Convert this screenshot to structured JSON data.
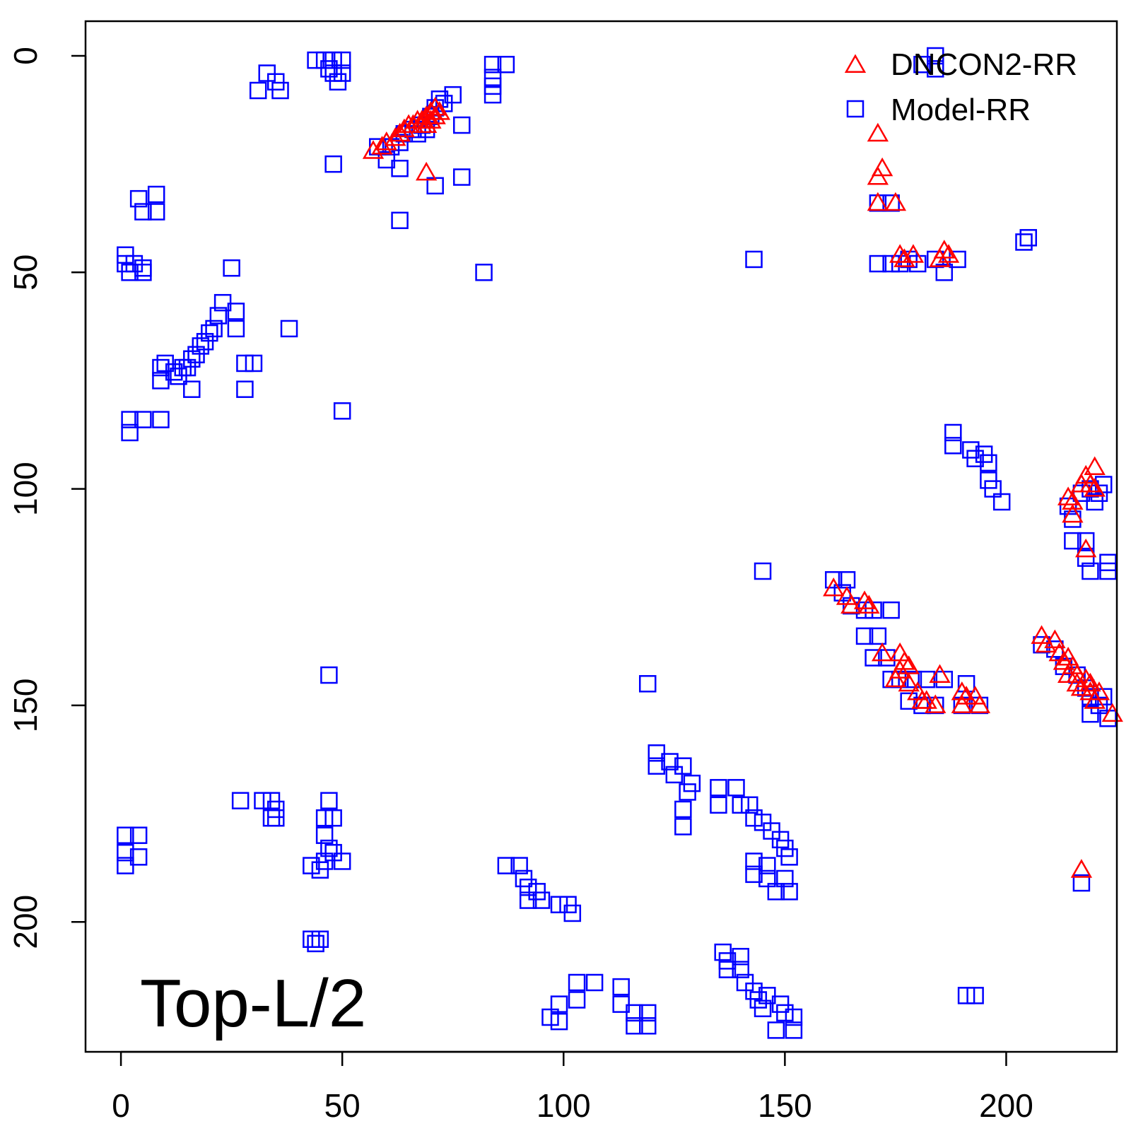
{
  "chart_data": {
    "type": "scatter",
    "title": "",
    "annotation": "Top-L/2",
    "xlim": [
      -8,
      225
    ],
    "ylim": [
      230,
      -8
    ],
    "x_ticks": [
      0,
      50,
      100,
      150,
      200
    ],
    "y_ticks": [
      0,
      50,
      100,
      150,
      200
    ],
    "x_tick_labels": [
      "0",
      "50",
      "100",
      "150",
      "200"
    ],
    "y_tick_labels": [
      "0",
      "50",
      "100",
      "150",
      "200"
    ],
    "grid": false,
    "legend_position": "top-right",
    "legend": [
      {
        "label": "DNCON2-RR",
        "marker": "triangle",
        "color": "#ff0000"
      },
      {
        "label": "Model-RR",
        "marker": "square",
        "color": "#0000ff"
      }
    ],
    "series": [
      {
        "name": "Model-RR",
        "marker": "square",
        "color": "#0000ff",
        "points": [
          [
            31,
            8
          ],
          [
            33,
            4
          ],
          [
            35,
            6
          ],
          [
            36,
            8
          ],
          [
            44,
            1
          ],
          [
            46,
            1
          ],
          [
            47,
            3
          ],
          [
            48,
            1
          ],
          [
            48,
            4
          ],
          [
            49,
            6
          ],
          [
            50,
            1
          ],
          [
            50,
            4
          ],
          [
            48,
            25
          ],
          [
            58,
            21
          ],
          [
            60,
            24
          ],
          [
            61,
            21
          ],
          [
            63,
            20
          ],
          [
            63,
            26
          ],
          [
            64,
            18
          ],
          [
            66,
            17
          ],
          [
            67,
            18
          ],
          [
            68,
            16
          ],
          [
            69,
            17
          ],
          [
            70,
            14
          ],
          [
            71,
            12
          ],
          [
            72,
            10
          ],
          [
            73,
            11
          ],
          [
            75,
            9
          ],
          [
            77,
            16
          ],
          [
            77,
            28
          ],
          [
            71,
            30
          ],
          [
            63,
            38
          ],
          [
            84,
            2
          ],
          [
            84,
            5
          ],
          [
            84,
            7
          ],
          [
            84,
            9
          ],
          [
            87,
            2
          ],
          [
            82,
            50
          ],
          [
            4,
            33
          ],
          [
            5,
            36
          ],
          [
            8,
            32
          ],
          [
            8,
            36
          ],
          [
            1,
            46
          ],
          [
            1,
            48
          ],
          [
            2,
            50
          ],
          [
            3,
            48
          ],
          [
            5,
            49
          ],
          [
            5,
            50
          ],
          [
            25,
            49
          ],
          [
            23,
            57
          ],
          [
            22,
            60
          ],
          [
            21,
            63
          ],
          [
            26,
            59
          ],
          [
            26,
            63
          ],
          [
            20,
            64
          ],
          [
            19,
            66
          ],
          [
            18,
            67
          ],
          [
            17,
            69
          ],
          [
            16,
            70
          ],
          [
            15,
            72
          ],
          [
            14,
            72
          ],
          [
            13,
            74
          ],
          [
            12,
            73
          ],
          [
            10,
            71
          ],
          [
            9,
            72
          ],
          [
            9,
            75
          ],
          [
            16,
            77
          ],
          [
            28,
            71
          ],
          [
            30,
            71
          ],
          [
            28,
            77
          ],
          [
            38,
            63
          ],
          [
            2,
            84
          ],
          [
            5,
            84
          ],
          [
            9,
            84
          ],
          [
            2,
            87
          ],
          [
            50,
            82
          ],
          [
            171,
            34
          ],
          [
            174,
            34
          ],
          [
            171,
            48
          ],
          [
            174,
            48
          ],
          [
            176,
            48
          ],
          [
            178,
            47
          ],
          [
            180,
            48
          ],
          [
            184,
            47
          ],
          [
            186,
            50
          ],
          [
            189,
            47
          ],
          [
            204,
            43
          ],
          [
            205,
            42
          ],
          [
            143,
            47
          ],
          [
            181,
            2
          ],
          [
            184,
            3
          ],
          [
            184,
            0
          ],
          [
            188,
            87
          ],
          [
            188,
            90
          ],
          [
            192,
            91
          ],
          [
            193,
            93
          ],
          [
            195,
            92
          ],
          [
            196,
            94
          ],
          [
            196,
            98
          ],
          [
            197,
            100
          ],
          [
            199,
            103
          ],
          [
            214,
            104
          ],
          [
            215,
            107
          ],
          [
            217,
            101
          ],
          [
            219,
            100
          ],
          [
            220,
            103
          ],
          [
            222,
            99
          ],
          [
            221,
            101
          ],
          [
            215,
            112
          ],
          [
            218,
            112
          ],
          [
            218,
            116
          ],
          [
            219,
            119
          ],
          [
            223,
            117
          ],
          [
            223,
            119
          ],
          [
            145,
            119
          ],
          [
            161,
            121
          ],
          [
            164,
            121
          ],
          [
            163,
            124
          ],
          [
            165,
            127
          ],
          [
            168,
            128
          ],
          [
            170,
            128
          ],
          [
            174,
            128
          ],
          [
            168,
            134
          ],
          [
            171,
            134
          ],
          [
            170,
            139
          ],
          [
            173,
            139
          ],
          [
            174,
            144
          ],
          [
            176,
            144
          ],
          [
            179,
            144
          ],
          [
            182,
            144
          ],
          [
            186,
            144
          ],
          [
            191,
            145
          ],
          [
            178,
            149
          ],
          [
            181,
            150
          ],
          [
            184,
            150
          ],
          [
            190,
            150
          ],
          [
            194,
            150
          ],
          [
            208,
            136
          ],
          [
            211,
            137
          ],
          [
            213,
            141
          ],
          [
            216,
            143
          ],
          [
            218,
            146
          ],
          [
            219,
            148
          ],
          [
            222,
            148
          ],
          [
            223,
            153
          ],
          [
            219,
            152
          ],
          [
            221,
            150
          ],
          [
            119,
            145
          ],
          [
            47,
            143
          ],
          [
            217,
            191
          ],
          [
            121,
            161
          ],
          [
            121,
            164
          ],
          [
            124,
            163
          ],
          [
            125,
            166
          ],
          [
            127,
            164
          ],
          [
            129,
            168
          ],
          [
            128,
            170
          ],
          [
            127,
            174
          ],
          [
            127,
            178
          ],
          [
            135,
            169
          ],
          [
            135,
            173
          ],
          [
            139,
            169
          ],
          [
            140,
            173
          ],
          [
            142,
            173
          ],
          [
            143,
            176
          ],
          [
            145,
            177
          ],
          [
            147,
            179
          ],
          [
            149,
            181
          ],
          [
            150,
            183
          ],
          [
            151,
            185
          ],
          [
            143,
            186
          ],
          [
            143,
            189
          ],
          [
            146,
            187
          ],
          [
            146,
            190
          ],
          [
            148,
            193
          ],
          [
            150,
            190
          ],
          [
            151,
            193
          ],
          [
            27,
            172
          ],
          [
            32,
            172
          ],
          [
            34,
            172
          ],
          [
            35,
            174
          ],
          [
            34,
            176
          ],
          [
            35,
            176
          ],
          [
            47,
            172
          ],
          [
            46,
            176
          ],
          [
            48,
            176
          ],
          [
            46,
            180
          ],
          [
            47,
            183
          ],
          [
            46,
            186
          ],
          [
            45,
            188
          ],
          [
            43,
            187
          ],
          [
            48,
            184
          ],
          [
            50,
            186
          ],
          [
            1,
            180
          ],
          [
            1,
            184
          ],
          [
            1,
            187
          ],
          [
            4,
            180
          ],
          [
            4,
            185
          ],
          [
            87,
            187
          ],
          [
            90,
            187
          ],
          [
            91,
            190
          ],
          [
            92,
            192
          ],
          [
            92,
            195
          ],
          [
            94,
            193
          ],
          [
            95,
            195
          ],
          [
            99,
            196
          ],
          [
            101,
            196
          ],
          [
            102,
            198
          ],
          [
            43,
            204
          ],
          [
            44,
            205
          ],
          [
            45,
            204
          ],
          [
            136,
            207
          ],
          [
            137,
            209
          ],
          [
            137,
            211
          ],
          [
            140,
            208
          ],
          [
            140,
            211
          ],
          [
            141,
            214
          ],
          [
            143,
            216
          ],
          [
            144,
            218
          ],
          [
            145,
            220
          ],
          [
            146,
            217
          ],
          [
            149,
            219
          ],
          [
            150,
            221
          ],
          [
            152,
            222
          ],
          [
            152,
            225
          ],
          [
            148,
            225
          ],
          [
            103,
            214
          ],
          [
            103,
            218
          ],
          [
            107,
            214
          ],
          [
            113,
            215
          ],
          [
            113,
            219
          ],
          [
            116,
            221
          ],
          [
            116,
            224
          ],
          [
            119,
            221
          ],
          [
            119,
            224
          ],
          [
            99,
            219
          ],
          [
            99,
            223
          ],
          [
            97,
            222
          ],
          [
            191,
            217
          ],
          [
            193,
            217
          ]
        ]
      },
      {
        "name": "DNCON2-RR",
        "marker": "triangle",
        "color": "#ff0000",
        "points": [
          [
            57,
            22
          ],
          [
            59,
            21
          ],
          [
            60,
            20
          ],
          [
            62,
            19
          ],
          [
            63,
            18
          ],
          [
            64,
            17
          ],
          [
            65,
            16
          ],
          [
            66,
            16
          ],
          [
            67,
            15
          ],
          [
            68,
            15
          ],
          [
            68,
            16
          ],
          [
            69,
            14
          ],
          [
            69,
            16
          ],
          [
            70,
            13
          ],
          [
            70,
            15
          ],
          [
            71,
            12
          ],
          [
            71,
            14
          ],
          [
            72,
            13
          ],
          [
            69,
            27
          ],
          [
            171,
            18
          ],
          [
            172,
            26
          ],
          [
            171,
            28
          ],
          [
            171,
            34
          ],
          [
            175,
            34
          ],
          [
            176,
            46
          ],
          [
            177,
            47
          ],
          [
            179,
            46
          ],
          [
            186,
            45
          ],
          [
            187,
            46
          ],
          [
            185,
            47
          ],
          [
            220,
            95
          ],
          [
            218,
            97
          ],
          [
            217,
            99
          ],
          [
            219,
            99
          ],
          [
            220,
            100
          ],
          [
            215,
            103
          ],
          [
            214,
            102
          ],
          [
            215,
            106
          ],
          [
            218,
            114
          ],
          [
            161,
            123
          ],
          [
            164,
            125
          ],
          [
            165,
            127
          ],
          [
            168,
            126
          ],
          [
            169,
            127
          ],
          [
            172,
            138
          ],
          [
            176,
            138
          ],
          [
            177,
            140
          ],
          [
            176,
            142
          ],
          [
            178,
            141
          ],
          [
            175,
            144
          ],
          [
            178,
            145
          ],
          [
            180,
            147
          ],
          [
            181,
            149
          ],
          [
            182,
            149
          ],
          [
            184,
            150
          ],
          [
            185,
            143
          ],
          [
            190,
            147
          ],
          [
            191,
            148
          ],
          [
            190,
            150
          ],
          [
            193,
            148
          ],
          [
            194,
            150
          ],
          [
            208,
            134
          ],
          [
            209,
            136
          ],
          [
            211,
            135
          ],
          [
            212,
            138
          ],
          [
            213,
            140
          ],
          [
            214,
            139
          ],
          [
            215,
            141
          ],
          [
            214,
            143
          ],
          [
            216,
            143
          ],
          [
            216,
            145
          ],
          [
            217,
            146
          ],
          [
            218,
            144
          ],
          [
            219,
            145
          ],
          [
            219,
            147
          ],
          [
            220,
            149
          ],
          [
            221,
            147
          ],
          [
            224,
            152
          ],
          [
            217,
            188
          ]
        ]
      }
    ]
  }
}
